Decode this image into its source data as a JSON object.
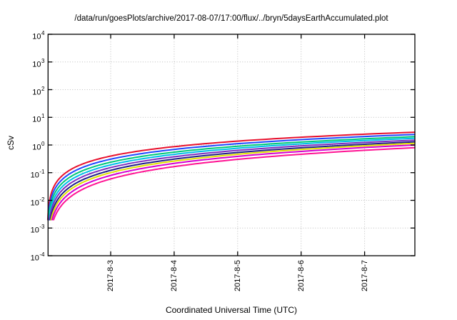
{
  "window": {
    "background_color": "#ffffff",
    "axis_color": "#000000",
    "text_color": "#000000"
  },
  "chart_data": {
    "type": "line",
    "title": "/data/run/goesPlots/archive/2017-08-07/17:00/flux/../bryn/5daysEarthAccumulated.plot",
    "xlabel": "Coordinated Universal Time (UTC)",
    "ylabel": "cSv",
    "legend": {
      "show": false
    },
    "grid": {
      "show": true,
      "style": "dotted",
      "color": "#bdbdbd"
    },
    "y_axis": {
      "scale": "log10",
      "range": [
        0.0001,
        10000
      ],
      "tick_base": "10",
      "tick_exponents": [
        4,
        3,
        2,
        1,
        0,
        -1,
        -2,
        -3,
        -4
      ]
    },
    "x_axis": {
      "scale": "time",
      "tick_labels": [
        "2017-8-3",
        "2017-8-4",
        "2017-8-5",
        "2017-8-6",
        "2017-8-7"
      ],
      "tick_day_offsets": [
        1,
        2,
        3,
        4,
        5
      ],
      "data_start_day_offset": 0.01,
      "data_end_day_offset": 5.79
    },
    "series": [
      {
        "name": "curve-1-red",
        "color": "#e8112d",
        "end_value_cSv": 2.9,
        "growth_exponent": 1.13,
        "values_at_day_ticks": [
          0.4,
          0.87,
          1.38,
          1.91,
          2.46
        ]
      },
      {
        "name": "curve-2-blue",
        "color": "#2048ff",
        "end_value_cSv": 2.4,
        "growth_exponent": 1.17,
        "values_at_day_ticks": [
          0.31,
          0.69,
          1.11,
          1.56,
          2.02
        ]
      },
      {
        "name": "curve-3-green",
        "color": "#00c878",
        "end_value_cSv": 2.0,
        "growth_exponent": 1.21,
        "values_at_day_ticks": [
          0.24,
          0.55,
          0.9,
          1.28,
          1.67
        ]
      },
      {
        "name": "curve-4-cyan",
        "color": "#00bfe8",
        "end_value_cSv": 1.75,
        "growth_exponent": 1.26,
        "values_at_day_ticks": [
          0.19,
          0.46,
          0.76,
          1.1,
          1.45
        ]
      },
      {
        "name": "curve-5-purple",
        "color": "#7d2fbe",
        "end_value_cSv": 1.5,
        "growth_exponent": 1.3,
        "values_at_day_ticks": [
          0.15,
          0.38,
          0.64,
          0.93,
          1.24
        ]
      },
      {
        "name": "curve-6-navy",
        "color": "#20208c",
        "end_value_cSv": 1.3,
        "growth_exponent": 1.35,
        "values_at_day_ticks": [
          0.12,
          0.31,
          0.54,
          0.79,
          1.07
        ]
      },
      {
        "name": "curve-7-yellow",
        "color": "#e0e000",
        "end_value_cSv": 1.15,
        "growth_exponent": 1.39,
        "values_at_day_ticks": [
          0.1,
          0.26,
          0.46,
          0.69,
          0.94
        ]
      },
      {
        "name": "curve-8-magenta",
        "color": "#d400d4",
        "end_value_cSv": 1.0,
        "growth_exponent": 1.44,
        "values_at_day_ticks": [
          0.08,
          0.22,
          0.39,
          0.59,
          0.81
        ]
      },
      {
        "name": "curve-9-pink",
        "color": "#ff1493",
        "end_value_cSv": 0.8,
        "growth_exponent": 1.48,
        "values_at_day_ticks": [
          0.06,
          0.17,
          0.3,
          0.46,
          0.64
        ]
      }
    ]
  }
}
